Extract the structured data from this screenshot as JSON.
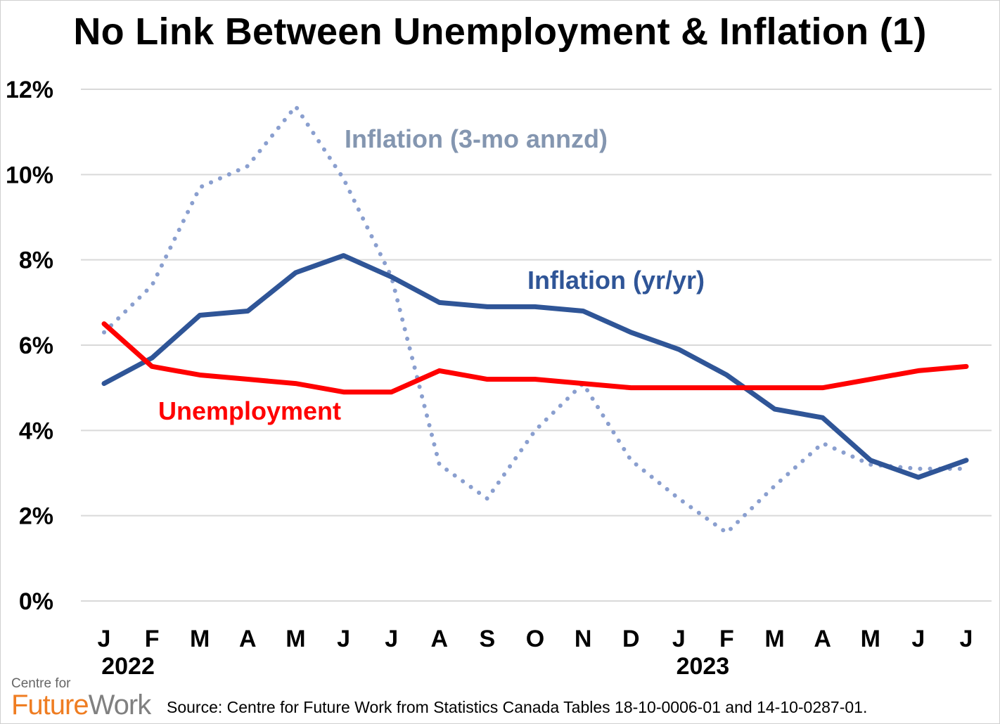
{
  "chart_data": {
    "type": "line",
    "title": "No Link Between Unemployment & Inflation (1)",
    "xlabel": "",
    "ylabel": "",
    "ylim": [
      0,
      12
    ],
    "y_ticks": [
      "0%",
      "2%",
      "4%",
      "6%",
      "8%",
      "10%",
      "12%"
    ],
    "grid": true,
    "categories": [
      "J",
      "F",
      "M",
      "A",
      "M",
      "J",
      "J",
      "A",
      "S",
      "O",
      "N",
      "D",
      "J",
      "F",
      "M",
      "A",
      "M",
      "J",
      "J"
    ],
    "year_labels": [
      {
        "label": "2022",
        "at_index": 0.5
      },
      {
        "label": "2023",
        "at_index": 12.5
      }
    ],
    "series": [
      {
        "name": "Inflation (3-mo annzd)",
        "color": "#8a9fcf",
        "style": "dotted",
        "label_color": "#8496b0",
        "values": [
          6.3,
          7.4,
          9.7,
          10.2,
          11.6,
          9.9,
          7.6,
          3.2,
          2.4,
          4.0,
          5.1,
          3.3,
          2.4,
          1.6,
          2.7,
          3.7,
          3.2,
          3.1,
          3.1
        ]
      },
      {
        "name": "Inflation (yr/yr)",
        "color": "#2f5597",
        "style": "solid",
        "label_color": "#2f5597",
        "values": [
          5.1,
          5.7,
          6.7,
          6.8,
          7.7,
          8.1,
          7.6,
          7.0,
          6.9,
          6.9,
          6.8,
          6.3,
          5.9,
          5.3,
          4.5,
          4.3,
          3.3,
          2.9,
          3.3
        ]
      },
      {
        "name": "Unemployment",
        "color": "#ff0000",
        "style": "solid",
        "label_color": "#ff0000",
        "values": [
          6.5,
          5.5,
          5.3,
          5.2,
          5.1,
          4.9,
          4.9,
          5.4,
          5.2,
          5.2,
          5.1,
          5.0,
          5.0,
          5.0,
          5.0,
          5.0,
          5.2,
          5.4,
          5.5
        ]
      }
    ]
  },
  "logo": {
    "line1": "Centre for",
    "future": "Future",
    "work": "Work"
  },
  "source": "Source:  Centre for Future Work from Statistics Canada Tables 18-10-0006-01 and 14-10-0287-01."
}
